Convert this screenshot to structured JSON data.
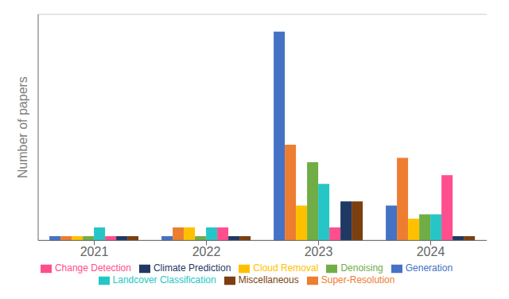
{
  "chart_data": {
    "type": "bar",
    "ylabel": "Number of papers",
    "categories": [
      "2021",
      "2022",
      "2023",
      "2024"
    ],
    "series": [
      {
        "name": "Generation",
        "color": "#4472C4",
        "values": [
          1,
          1,
          48,
          8
        ]
      },
      {
        "name": "Super-Resolution",
        "color": "#ED7D31",
        "values": [
          1,
          3,
          22,
          19
        ]
      },
      {
        "name": "Cloud Removal",
        "color": "#FFC000",
        "values": [
          1,
          3,
          8,
          5
        ]
      },
      {
        "name": "Denoising",
        "color": "#70AD47",
        "values": [
          1,
          1,
          18,
          6
        ]
      },
      {
        "name": "Landcover Classification",
        "color": "#26C6C6",
        "values": [
          3,
          3,
          13,
          6
        ]
      },
      {
        "name": "Change Detection",
        "color": "#FF4E8E",
        "values": [
          1,
          3,
          3,
          15
        ]
      },
      {
        "name": "Climate Prediction",
        "color": "#1F3864",
        "values": [
          1,
          1,
          9,
          1
        ]
      },
      {
        "name": "Miscellaneous",
        "color": "#7B3F10",
        "values": [
          1,
          1,
          9,
          1
        ]
      }
    ],
    "ylim": [
      0,
      52
    ],
    "yticks": [
      0,
      5.777777777777778,
      11.555555555555555,
      17.333333333333332,
      23.11111111111111,
      28.88888888888889,
      34.666666666666664,
      40.44444444444444,
      46.22222222222222,
      52
    ],
    "grid": true,
    "tick_labels": "x",
    "legend": "bottom"
  }
}
